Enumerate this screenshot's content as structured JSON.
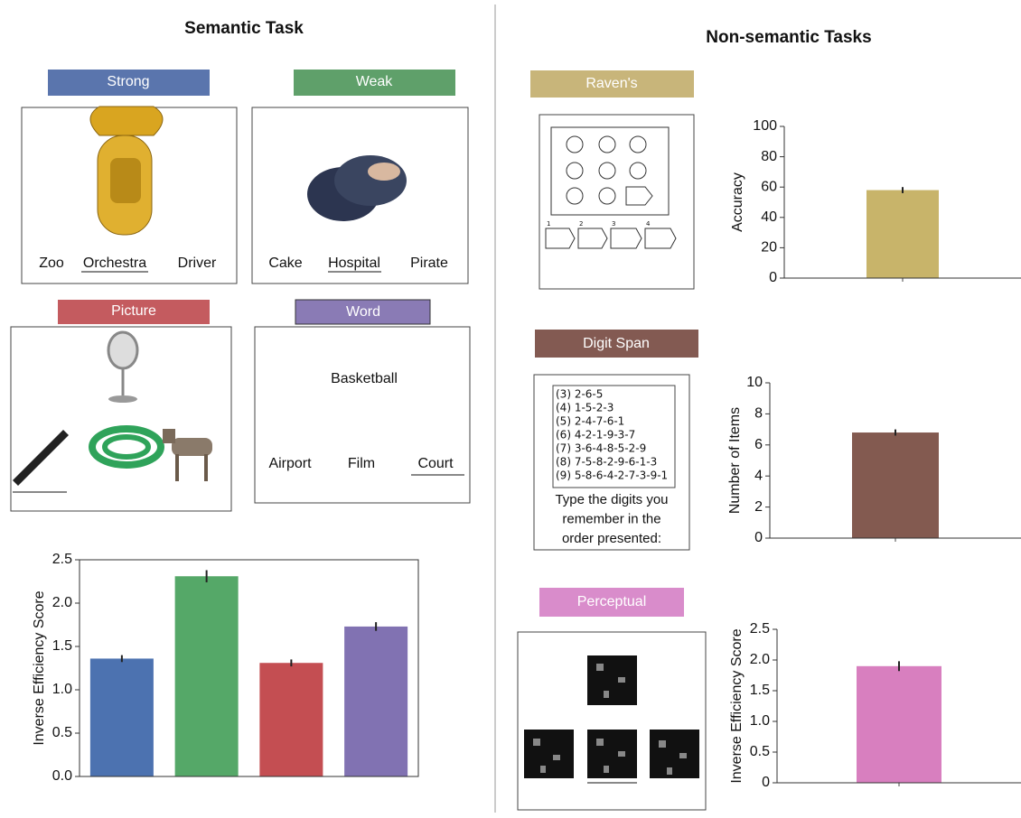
{
  "semantic_task": {
    "title": "Semantic Task",
    "panels": [
      {
        "label": "Strong",
        "words": [
          "Zoo",
          "Orchestra",
          "Driver"
        ]
      },
      {
        "label": "Weak",
        "words": [
          "Cake",
          "Hospital",
          "Pirate"
        ]
      },
      {
        "label": "Picture"
      },
      {
        "label": "Word",
        "cue": "Basketball",
        "words": [
          "Airport",
          "Film",
          "Court"
        ]
      }
    ]
  },
  "nonsemantic_tasks": {
    "title": "Non-semantic Tasks",
    "panels": [
      {
        "label": "Raven's",
        "options": [
          "1",
          "2",
          "3",
          "4"
        ]
      },
      {
        "label": "Digit Span",
        "sequences": [
          "(3) 2-6-5",
          "(4) 1-5-2-3",
          "(5) 2-4-7-6-1",
          "(6) 4-2-1-9-3-7",
          "(7) 3-6-4-8-5-2-9",
          "(8) 7-5-8-2-9-6-1-3",
          "(9) 5-8-6-4-2-7-3-9-1"
        ],
        "instruction": [
          "Type the digits you",
          "remember in the",
          "order presented:"
        ]
      },
      {
        "label": "Perceptual"
      }
    ]
  },
  "chart_data": [
    {
      "type": "bar",
      "ylabel": "Inverse Efficiency Score",
      "categories": [
        null,
        null,
        null,
        null
      ],
      "values": [
        1.36,
        2.31,
        1.31,
        1.73
      ],
      "errors": [
        0.04,
        0.07,
        0.04,
        0.05
      ],
      "colors": [
        "#4c72b0",
        "#55a868",
        "#c44e52",
        "#8172b2"
      ],
      "ylim": [
        0,
        2.5
      ],
      "yticks": [
        {
          "value": 0,
          "label": "0.0"
        },
        0.5,
        {
          "value": 1,
          "label": "1.0"
        },
        1.5,
        {
          "value": 2,
          "label": "2.0"
        },
        2.5
      ]
    },
    {
      "type": "bar",
      "ylabel": "Accuracy",
      "categories": [
        null
      ],
      "values": [
        58
      ],
      "errors": [
        2
      ],
      "colors": [
        "#c8b46a"
      ],
      "ylim": [
        0,
        100
      ],
      "yticks": [
        0,
        20,
        40,
        60,
        80,
        100
      ]
    },
    {
      "type": "bar",
      "ylabel": "Number of Items",
      "categories": [
        null
      ],
      "values": [
        6.8
      ],
      "errors": [
        0.2
      ],
      "colors": [
        "#835a50"
      ],
      "ylim": [
        0,
        10
      ],
      "yticks": [
        0,
        2,
        4,
        6,
        8,
        10
      ]
    },
    {
      "type": "bar",
      "ylabel": "Inverse Efficiency Score",
      "categories": [
        null
      ],
      "values": [
        1.9
      ],
      "errors": [
        0.08
      ],
      "colors": [
        "#d87fbf"
      ],
      "ylim": [
        0,
        2.5
      ],
      "yticks": [
        0,
        0.5,
        {
          "value": 1,
          "label": "1.0"
        },
        1.5,
        {
          "value": 2,
          "label": "2.0"
        },
        2.5
      ]
    }
  ]
}
